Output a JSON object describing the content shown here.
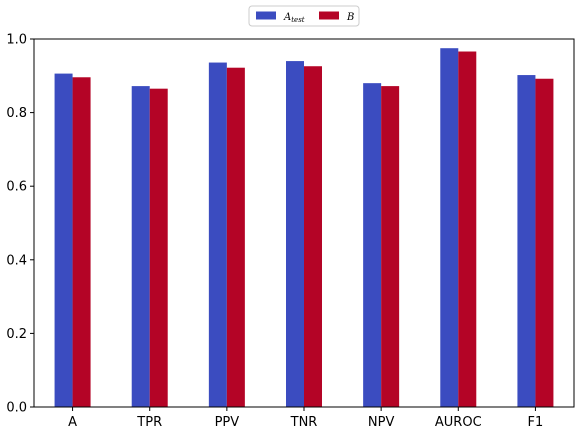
{
  "chart_data": {
    "type": "bar",
    "categories": [
      "A",
      "TPR",
      "PPV",
      "TNR",
      "NPV",
      "AUROC",
      "F1"
    ],
    "series": [
      {
        "name": "A_test",
        "color": "#3b4cc0",
        "values": [
          0.906,
          0.872,
          0.936,
          0.94,
          0.88,
          0.975,
          0.902
        ]
      },
      {
        "name": "B",
        "color": "#b40426",
        "values": [
          0.896,
          0.865,
          0.922,
          0.926,
          0.872,
          0.966,
          0.892
        ]
      }
    ],
    "ylim": [
      0.0,
      1.0
    ],
    "yticks": [
      "0.0",
      "0.2",
      "0.4",
      "0.6",
      "0.8",
      "1.0"
    ],
    "xlabel": "",
    "ylabel": "",
    "title": "",
    "grid": false,
    "legend_position": "top-center"
  },
  "legend": {
    "series_a_main": "A",
    "series_a_sub": "test",
    "series_b": "B"
  }
}
